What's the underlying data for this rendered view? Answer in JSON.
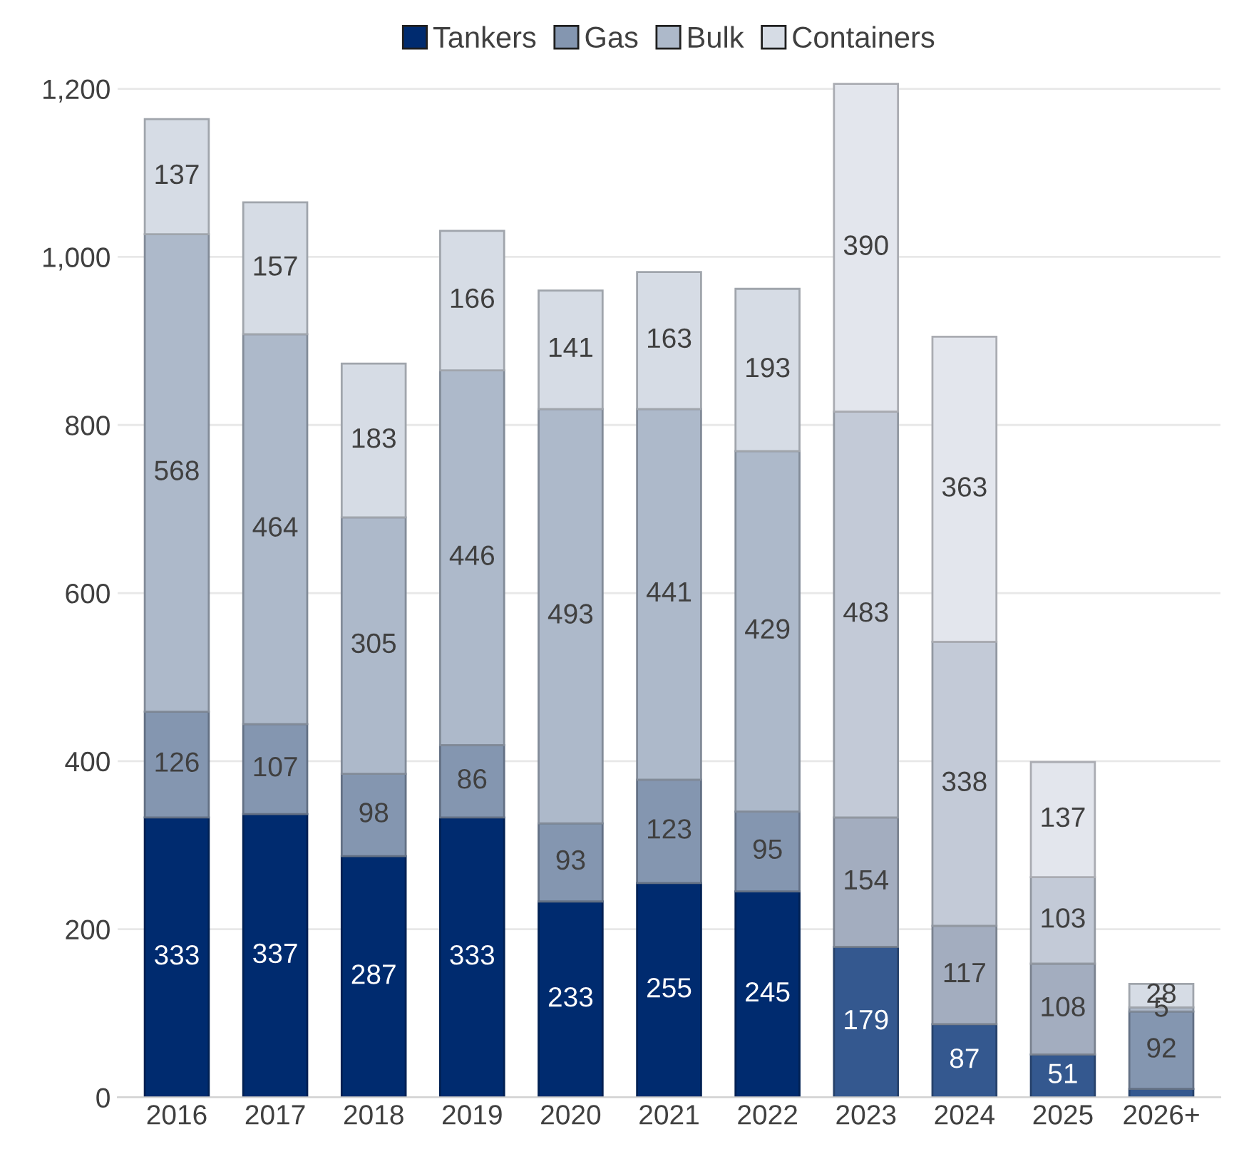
{
  "chart_data": {
    "type": "bar",
    "stacked": true,
    "categories": [
      "2016",
      "2017",
      "2018",
      "2019",
      "2020",
      "2021",
      "2022",
      "2023",
      "2024",
      "2025",
      "2026+"
    ],
    "series": [
      {
        "name": "Tankers",
        "color": "#002b6f",
        "colors": [
          "#002b6f",
          "#002b6f",
          "#002b6f",
          "#002b6f",
          "#002b6f",
          "#002b6f",
          "#002b6f",
          "#34588f",
          "#34588f",
          "#34588f",
          "#34588f"
        ],
        "values": [
          333,
          337,
          287,
          333,
          233,
          255,
          245,
          179,
          87,
          51,
          10
        ],
        "value_labels": [
          "333",
          "337",
          "287",
          "333",
          "233",
          "255",
          "245",
          "179",
          "87",
          "51",
          null
        ]
      },
      {
        "name": "Gas",
        "color": "#8496b0",
        "colors": [
          "#8496b0",
          "#8496b0",
          "#8496b0",
          "#8496b0",
          "#8496b0",
          "#8496b0",
          "#8496b0",
          "#a3adbf",
          "#a3adbf",
          "#a3adbf",
          "#8496b0"
        ],
        "values": [
          126,
          107,
          98,
          86,
          93,
          123,
          95,
          154,
          117,
          108,
          92
        ],
        "value_labels": [
          "126",
          "107",
          "98",
          "86",
          "93",
          "123",
          "95",
          "154",
          "117",
          "108",
          "92"
        ]
      },
      {
        "name": "Bulk",
        "color": "#adb9ca",
        "colors": [
          "#adb9ca",
          "#adb9ca",
          "#adb9ca",
          "#adb9ca",
          "#adb9ca",
          "#adb9ca",
          "#adb9ca",
          "#c3cad7",
          "#c3cad7",
          "#c3cad7",
          "#adb9ca"
        ],
        "values": [
          568,
          464,
          305,
          446,
          493,
          441,
          429,
          483,
          338,
          103,
          5
        ],
        "value_labels": [
          "568",
          "464",
          "305",
          "446",
          "493",
          "441",
          "429",
          "483",
          "338",
          "103",
          "5"
        ]
      },
      {
        "name": "Containers",
        "color": "#d6dce5",
        "colors": [
          "#d6dce5",
          "#d6dce5",
          "#d6dce5",
          "#d6dce5",
          "#d6dce5",
          "#d6dce5",
          "#d6dce5",
          "#e3e6ed",
          "#e3e6ed",
          "#e3e6ed",
          "#d6dce5"
        ],
        "values": [
          137,
          157,
          183,
          166,
          141,
          163,
          193,
          390,
          363,
          137,
          28
        ],
        "value_labels": [
          "137",
          "157",
          "183",
          "166",
          "141",
          "163",
          "193",
          "390",
          "363",
          "137",
          "28"
        ]
      }
    ],
    "ylim": [
      0,
      1210
    ],
    "yticks": [
      0,
      200,
      400,
      600,
      800,
      {
        "value": 1000,
        "label": "1,000"
      },
      {
        "value": 1200,
        "label": "1,200"
      }
    ],
    "grid": "y",
    "legend": "top"
  }
}
